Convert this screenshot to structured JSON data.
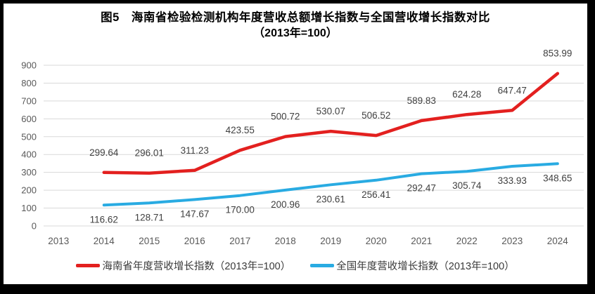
{
  "chart_data": {
    "type": "line",
    "title": "图5　海南省检验检测机构年度营收总额增长指数与全国营收增长指数对比",
    "subtitle": "（2013年=100）",
    "categories": [
      "2013",
      "2014",
      "2015",
      "2016",
      "2017",
      "2018",
      "2019",
      "2020",
      "2021",
      "2022",
      "2023",
      "2024"
    ],
    "series": [
      {
        "name": "海南省年度营收增长指数（2013年=100）",
        "color": "#e3201f",
        "values": [
          null,
          299.64,
          296.01,
          311.23,
          423.55,
          500.72,
          530.07,
          506.52,
          589.83,
          624.28,
          647.47,
          853.99
        ]
      },
      {
        "name": "全国年度营收增长指数（2013年=100）",
        "color": "#29abe2",
        "values": [
          null,
          116.62,
          128.71,
          147.67,
          170.0,
          200.96,
          230.61,
          256.41,
          292.47,
          305.74,
          333.93,
          348.65
        ]
      }
    ],
    "ylim": [
      0,
      900
    ],
    "yticks": [
      0,
      100,
      200,
      300,
      400,
      500,
      600,
      700,
      800,
      900
    ],
    "grid": true,
    "legend_position": "bottom",
    "data_labels_decimals": 2
  },
  "style_colors": {
    "frame_border": "#000000",
    "background": "#ffffff",
    "gridline": "#d9d9d9",
    "axis_text": "#595959",
    "data_label_text": "#404040"
  }
}
